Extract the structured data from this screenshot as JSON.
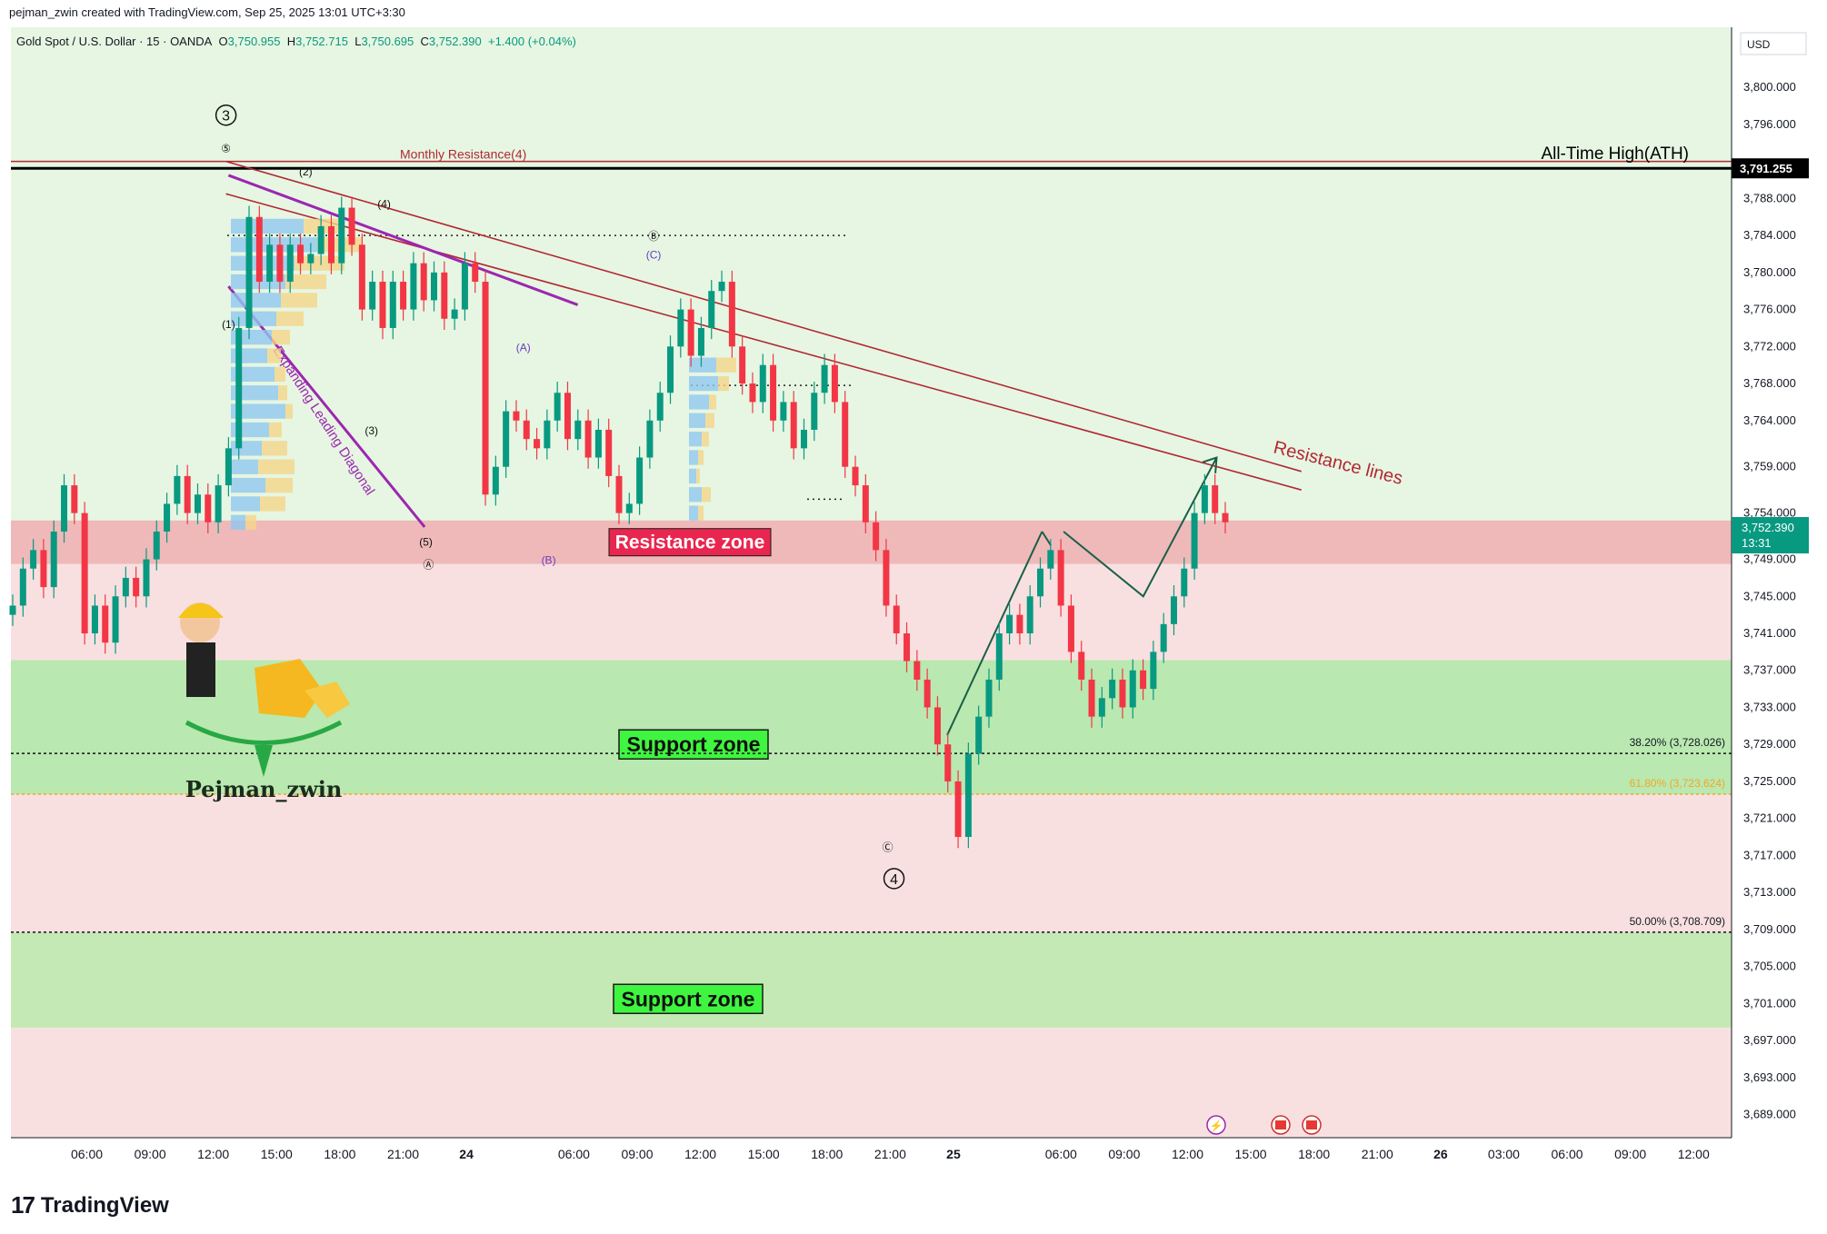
{
  "header": {
    "credit": "pejman_zwin created with TradingView.com, Sep 25, 2025 13:01 UTC+3:30",
    "symbol": "Gold Spot / U.S. Dollar · 15 · OANDA",
    "o_label": "O",
    "o": "3,750.955",
    "h_label": "H",
    "h": "3,752.715",
    "l_label": "L",
    "l": "3,750.695",
    "c_label": "C",
    "c": "3,752.390",
    "change": "+1.400 (+0.04%)"
  },
  "branding": {
    "logo": "17",
    "name": "TradingView",
    "author_watermark": "Pejman_zwin"
  },
  "colors": {
    "up": "#089981",
    "down": "#f23645",
    "resistance": "#b22833",
    "diagonal": "#9c27b0",
    "support_zone": "#b9e8b0",
    "resistance_zone": "#efb9b9",
    "upper_bg": "#e6f6e2",
    "lower_bg": "#f9e0e0"
  },
  "chart_data": {
    "type": "candlestick",
    "currency": "USD",
    "y_range": [
      3686.5,
      3806.5
    ],
    "y_ticks": [
      {
        "value": 3800,
        "label": "3,800.000"
      },
      {
        "value": 3796,
        "label": "3,796.000"
      },
      {
        "value": 3788,
        "label": "3,788.000"
      },
      {
        "value": 3784,
        "label": "3,784.000"
      },
      {
        "value": 3780,
        "label": "3,780.000"
      },
      {
        "value": 3776,
        "label": "3,776.000"
      },
      {
        "value": 3772,
        "label": "3,772.000"
      },
      {
        "value": 3768,
        "label": "3,768.000"
      },
      {
        "value": 3764,
        "label": "3,764.000"
      },
      {
        "value": 3759,
        "label": "3,759.000"
      },
      {
        "value": 3754,
        "label": "3,754.000"
      },
      {
        "value": 3749,
        "label": "3,749.000"
      },
      {
        "value": 3745,
        "label": "3,745.000"
      },
      {
        "value": 3741,
        "label": "3,741.000"
      },
      {
        "value": 3737,
        "label": "3,737.000"
      },
      {
        "value": 3733,
        "label": "3,733.000"
      },
      {
        "value": 3729,
        "label": "3,729.000"
      },
      {
        "value": 3725,
        "label": "3,725.000"
      },
      {
        "value": 3721,
        "label": "3,721.000"
      },
      {
        "value": 3717,
        "label": "3,717.000"
      },
      {
        "value": 3713,
        "label": "3,713.000"
      },
      {
        "value": 3709,
        "label": "3,709.000"
      },
      {
        "value": 3705,
        "label": "3,705.000"
      },
      {
        "value": 3701,
        "label": "3,701.000"
      },
      {
        "value": 3697,
        "label": "3,697.000"
      },
      {
        "value": 3693,
        "label": "3,693.000"
      },
      {
        "value": 3689,
        "label": "3,689.000"
      }
    ],
    "x_range": [
      0,
      136
    ],
    "x_ticks": [
      {
        "x": 6,
        "label": "06:00"
      },
      {
        "x": 11,
        "label": "09:00"
      },
      {
        "x": 16,
        "label": "12:00"
      },
      {
        "x": 21,
        "label": "15:00"
      },
      {
        "x": 26,
        "label": "18:00"
      },
      {
        "x": 31,
        "label": "21:00"
      },
      {
        "x": 36,
        "label": "24",
        "bold": true
      },
      {
        "x": 44.5,
        "label": "06:00"
      },
      {
        "x": 49.5,
        "label": "09:00"
      },
      {
        "x": 54.5,
        "label": "12:00"
      },
      {
        "x": 59.5,
        "label": "15:00"
      },
      {
        "x": 64.5,
        "label": "18:00"
      },
      {
        "x": 69.5,
        "label": "21:00"
      },
      {
        "x": 74.5,
        "label": "25",
        "bold": true
      },
      {
        "x": 83,
        "label": "06:00"
      },
      {
        "x": 88,
        "label": "09:00"
      },
      {
        "x": 93,
        "label": "12:00"
      },
      {
        "x": 98,
        "label": "15:00"
      },
      {
        "x": 103,
        "label": "18:00"
      },
      {
        "x": 108,
        "label": "21:00"
      },
      {
        "x": 113,
        "label": "26",
        "bold": true
      },
      {
        "x": 118,
        "label": "03:00"
      },
      {
        "x": 123,
        "label": "06:00"
      },
      {
        "x": 128,
        "label": "09:00"
      },
      {
        "x": 133,
        "label": "12:00"
      }
    ],
    "closes": [
      3744,
      3748,
      3750,
      3746,
      3752,
      3757,
      3754,
      3741,
      3744,
      3740,
      3745,
      3747,
      3745,
      3749,
      3752,
      3755,
      3758,
      3754,
      3756,
      3753,
      3757,
      3761,
      3774,
      3786,
      3779,
      3783,
      3779,
      3783,
      3781,
      3782,
      3785,
      3781,
      3787,
      3783,
      3776,
      3779,
      3774,
      3779,
      3776,
      3781,
      3777,
      3780,
      3775,
      3776,
      3781,
      3779,
      3756,
      3759,
      3765,
      3764,
      3762,
      3761,
      3764,
      3767,
      3762,
      3764,
      3760,
      3763,
      3758,
      3754,
      3755,
      3760,
      3764,
      3767,
      3772,
      3776,
      3771,
      3774,
      3778,
      3779,
      3772,
      3768,
      3766,
      3770,
      3764,
      3766,
      3761,
      3763,
      3767,
      3770,
      3766,
      3759,
      3757,
      3753,
      3750,
      3744,
      3741,
      3738,
      3736,
      3733,
      3729,
      3725,
      3719,
      3728,
      3732,
      3736,
      3741,
      3743,
      3741,
      3745,
      3748,
      3750,
      3744,
      3739,
      3736,
      3732,
      3734,
      3736,
      3733,
      3737,
      3735,
      3739,
      3742,
      3745,
      3748,
      3754,
      3757,
      3754,
      3753
    ],
    "x_start": 0,
    "x_step": 0.44,
    "levels": [
      {
        "name": "ATH",
        "value": 3791.255,
        "label": "All-Time High(ATH)",
        "price_label": "3,791.255"
      },
      {
        "name": "monthly-resistance",
        "value": 3792,
        "label": "Monthly Resistance(4)"
      },
      {
        "name": "fib-382",
        "value": 3728.026,
        "label": "38.20% (3,728.026)"
      },
      {
        "name": "fib-618",
        "value": 3723.624,
        "label": "61.80% (3,723.624)"
      },
      {
        "name": "fib-50",
        "value": 3708.709,
        "label": "50.00% (3,708.709)"
      }
    ],
    "zones": [
      {
        "name": "resistance-zone",
        "from": 3748.5,
        "to": 3753.2,
        "label": "Resistance zone"
      },
      {
        "name": "support-zone-1",
        "from": 3723.6,
        "to": 3738.1,
        "label": "Support zone"
      },
      {
        "name": "support-zone-2",
        "from": 3698.4,
        "to": 3708.7,
        "label": "Support zone"
      }
    ],
    "resistance_lines_label": "Resistance lines",
    "diagonal_label": "Expanding Leading Diagonal",
    "last_price": {
      "label": "3,752.390",
      "countdown": "13:31",
      "value": 3752.39
    },
    "wave_labels": [
      {
        "text": "3",
        "x": 17,
        "y": 3797,
        "circle": true
      },
      {
        "text": "⑤",
        "x": 17,
        "y": 3793
      },
      {
        "text": "(1)",
        "x": 17.2,
        "y": 3774
      },
      {
        "text": "(2)",
        "x": 23.3,
        "y": 3790.5
      },
      {
        "text": "(3)",
        "x": 28.5,
        "y": 3762.5
      },
      {
        "text": "(4)",
        "x": 29.5,
        "y": 3787
      },
      {
        "text": "(5)",
        "x": 32.8,
        "y": 3750.5
      },
      {
        "text": "Ⓐ",
        "x": 33,
        "y": 3748
      },
      {
        "text": "(A)",
        "x": 40.5,
        "y": 3771.5
      },
      {
        "text": "(B)",
        "x": 42.5,
        "y": 3748.5
      },
      {
        "text": "Ⓑ",
        "x": 50.8,
        "y": 3783.5
      },
      {
        "text": "(C)",
        "x": 50.8,
        "y": 3781.5
      },
      {
        "text": "Ⓒ",
        "x": 69.3,
        "y": 3717.5
      },
      {
        "text": "4",
        "x": 69.8,
        "y": 3714.5,
        "circle": true
      }
    ]
  }
}
